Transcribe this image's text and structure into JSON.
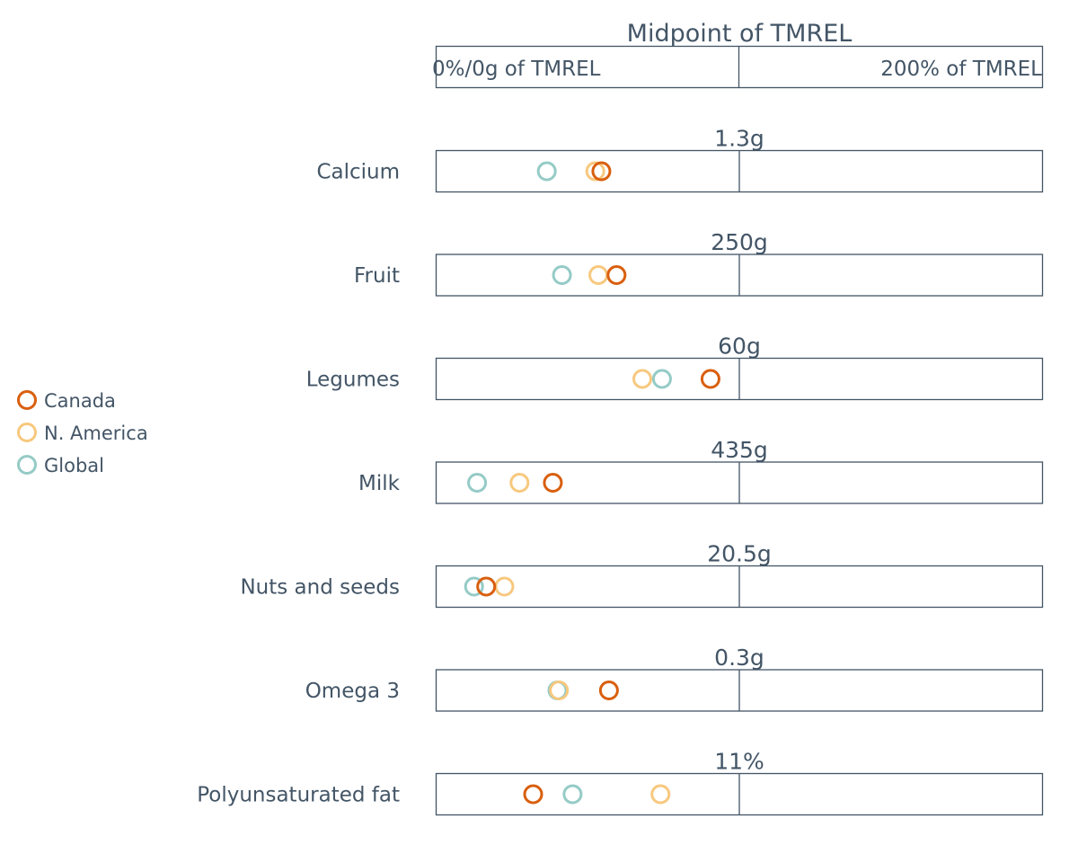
{
  "chart_data": {
    "type": "scatter",
    "title": "Midpoint of TMREL",
    "scale": {
      "left_label": "0%/0g of TMREL",
      "right_label": "200% of TMREL",
      "range_percent_of_tmrel": [
        0,
        200
      ]
    },
    "legend": {
      "placement": "left",
      "items": [
        {
          "name": "Canada",
          "color": "#d95f0e"
        },
        {
          "name": "N. America",
          "color": "#f7c87e"
        },
        {
          "name": "Global",
          "color": "#95cbc6"
        }
      ]
    },
    "categories": [
      "Calcium",
      "Fruit",
      "Legumes",
      "Milk",
      "Nuts and seeds",
      "Omega 3",
      "Polyunsaturated fat"
    ],
    "tmrel_labels": [
      "1.3g",
      "250g",
      "60g",
      "435g",
      "20.5g",
      "0.3g",
      "11%"
    ],
    "series": [
      {
        "name": "Canada",
        "color": "#d95f0e",
        "values": [
          54.5,
          59.5,
          90.5,
          38.5,
          16.5,
          57,
          32
        ]
      },
      {
        "name": "N. America",
        "color": "#f7c87e",
        "values": [
          52.5,
          53.5,
          68,
          27.5,
          22.5,
          40.5,
          74
        ]
      },
      {
        "name": "Global",
        "color": "#95cbc6",
        "values": [
          36.5,
          41.5,
          74.5,
          13.5,
          12.5,
          40,
          45
        ]
      }
    ]
  }
}
